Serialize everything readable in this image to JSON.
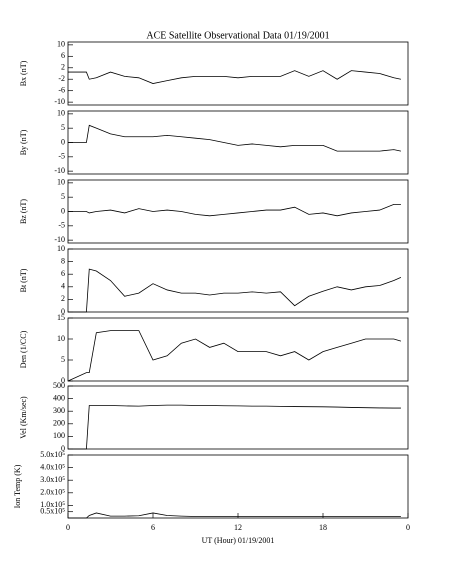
{
  "chart_data": [
    {
      "type": "line",
      "title": "ACE Satellite Observational Data   01/19/2001",
      "ylabel": "Bx (nT)",
      "x": [
        0,
        1.3,
        1.5,
        2,
        3,
        4,
        5,
        6,
        7,
        8,
        9,
        10,
        11,
        12,
        13,
        14,
        15,
        16,
        17,
        18,
        19,
        20,
        21,
        22,
        23,
        23.5
      ],
      "values": [
        0.5,
        0.5,
        -2,
        -1.5,
        0.5,
        -1,
        -1.5,
        -3.5,
        -2.5,
        -1.5,
        -1,
        -1,
        -1,
        -1.5,
        -1,
        -1,
        -1,
        1,
        -1,
        1,
        -2,
        1,
        0.5,
        0,
        -1.5,
        -2
      ],
      "xlim": [
        0,
        24
      ],
      "ylim": [
        -11,
        11
      ],
      "yticks": [
        -10,
        -6,
        -2,
        2,
        6,
        10
      ],
      "color": "#000000"
    },
    {
      "type": "line",
      "ylabel": "By (nT)",
      "x": [
        0,
        1.3,
        1.5,
        2,
        3,
        4,
        5,
        6,
        7,
        8,
        9,
        10,
        11,
        12,
        13,
        14,
        15,
        16,
        17,
        18,
        19,
        20,
        21,
        22,
        23,
        23.5
      ],
      "values": [
        0,
        0,
        6,
        5,
        3,
        2,
        2,
        2,
        2.5,
        2,
        1.5,
        1,
        0,
        -1,
        -0.5,
        -1,
        -1.5,
        -1,
        -1,
        -1,
        -3,
        -3,
        -3,
        -3,
        -2.5,
        -3
      ],
      "xlim": [
        0,
        24
      ],
      "ylim": [
        -11,
        11
      ],
      "yticks": [
        -10,
        -5,
        0,
        5,
        10
      ],
      "color": "#000000"
    },
    {
      "type": "line",
      "ylabel": "Bz (nT)",
      "x": [
        0,
        1.3,
        1.5,
        2,
        3,
        4,
        5,
        6,
        7,
        8,
        9,
        10,
        11,
        12,
        13,
        14,
        15,
        16,
        17,
        18,
        19,
        20,
        21,
        22,
        23,
        23.5
      ],
      "values": [
        0,
        0,
        -0.5,
        0,
        0.5,
        -0.5,
        1,
        0,
        0.5,
        0,
        -1,
        -1.5,
        -1,
        -0.5,
        0,
        0.5,
        0.5,
        1.5,
        -1,
        -0.5,
        -1.5,
        -0.5,
        0,
        0.5,
        2.5,
        2.5
      ],
      "xlim": [
        0,
        24
      ],
      "ylim": [
        -11,
        11
      ],
      "yticks": [
        -10,
        -5,
        0,
        5,
        10
      ],
      "color": "#000000"
    },
    {
      "type": "line",
      "ylabel": "Bt (nT)",
      "x": [
        0,
        1.3,
        1.5,
        2,
        3,
        4,
        5,
        6,
        7,
        8,
        9,
        10,
        11,
        12,
        13,
        14,
        15,
        16,
        17,
        18,
        19,
        20,
        21,
        22,
        23,
        23.5
      ],
      "values": [
        0,
        0,
        6.8,
        6.5,
        5,
        2.5,
        3,
        4.5,
        3.5,
        3,
        3,
        2.7,
        3,
        3,
        3.2,
        3,
        3.2,
        1,
        2.5,
        3.3,
        4,
        3.5,
        4,
        4.2,
        5,
        5.5
      ],
      "xlim": [
        0,
        24
      ],
      "ylim": [
        0,
        10
      ],
      "yticks": [
        0,
        2,
        4,
        6,
        8,
        10
      ],
      "color": "#000000"
    },
    {
      "type": "line",
      "ylabel": "Den (1/CC)",
      "x": [
        0,
        1.3,
        1.5,
        2,
        3,
        4,
        5,
        6,
        7,
        8,
        9,
        10,
        11,
        12,
        13,
        14,
        15,
        16,
        17,
        18,
        19,
        20,
        21,
        22,
        23,
        23.5
      ],
      "values": [
        0,
        2,
        2,
        11.5,
        12,
        12,
        12,
        5,
        6,
        9,
        10,
        8,
        9,
        7,
        7,
        7,
        6,
        7,
        5,
        7,
        8,
        9,
        10,
        10,
        10,
        9.5
      ],
      "xlim": [
        0,
        24
      ],
      "ylim": [
        0,
        15
      ],
      "yticks": [
        0,
        5,
        10,
        15
      ],
      "color": "#000000"
    },
    {
      "type": "line",
      "ylabel": "Vel (Km/sec)",
      "x": [
        0,
        1.3,
        1.5,
        2,
        3,
        4,
        5,
        6,
        7,
        8,
        9,
        10,
        11,
        12,
        13,
        14,
        15,
        16,
        17,
        18,
        19,
        20,
        21,
        22,
        23,
        23.5
      ],
      "values": [
        0,
        0,
        345,
        345,
        345,
        342,
        340,
        345,
        348,
        348,
        345,
        345,
        343,
        342,
        340,
        340,
        338,
        337,
        336,
        335,
        333,
        330,
        328,
        326,
        325,
        325
      ],
      "xlim": [
        0,
        24
      ],
      "ylim": [
        0,
        500
      ],
      "yticks": [
        0,
        100,
        200,
        300,
        400,
        500
      ],
      "color": "#000000"
    },
    {
      "type": "line",
      "ylabel": "Ion Temp (K)",
      "xlabel": "UT (Hour)   01/19/2001",
      "x": [
        0,
        1.3,
        1.5,
        2,
        3,
        4,
        5,
        6,
        7,
        8,
        9,
        10,
        11,
        12,
        13,
        14,
        15,
        16,
        17,
        18,
        19,
        20,
        21,
        22,
        23,
        23.5
      ],
      "values": [
        0,
        0,
        20000,
        40000,
        15000,
        15000,
        18000,
        40000,
        20000,
        15000,
        12000,
        12000,
        12000,
        12000,
        12000,
        12000,
        12000,
        12000,
        12000,
        12000,
        12000,
        12000,
        12000,
        12000,
        12000,
        12000
      ],
      "xlim": [
        0,
        24
      ],
      "ylim": [
        0,
        500000
      ],
      "yticks": [
        {
          "value": 50000,
          "label": "0.5x10⁵"
        },
        {
          "value": 100000,
          "label": "1.0x10⁵"
        },
        {
          "value": 200000,
          "label": "2.0x10⁵"
        },
        {
          "value": 300000,
          "label": "3.0x10⁵"
        },
        {
          "value": 400000,
          "label": "4.0x10⁵"
        },
        {
          "value": 500000,
          "label": "5.0x10⁵"
        }
      ],
      "xticks": [
        0,
        6,
        12,
        18,
        {
          "value": 24,
          "label": "0"
        }
      ],
      "color": "#000000"
    }
  ]
}
